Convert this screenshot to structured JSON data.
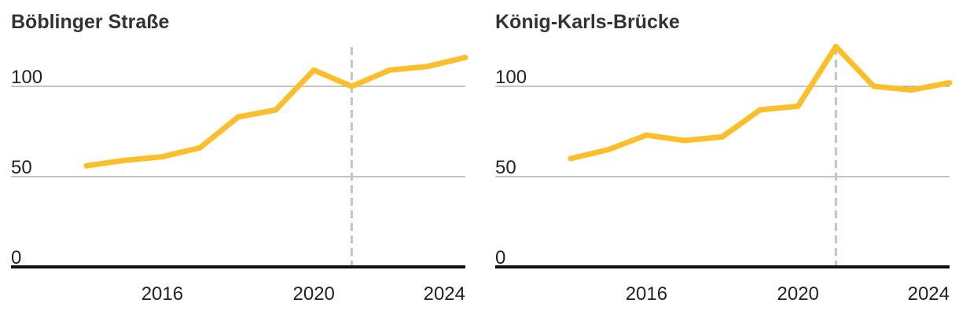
{
  "chart_data": [
    {
      "type": "line",
      "title": "Böblinger Straße",
      "xlabel": "",
      "ylabel": "",
      "ylim": [
        0,
        120
      ],
      "xlim": [
        2013,
        2024.9
      ],
      "y_ticks": [
        0,
        50,
        100
      ],
      "y_tick_labels": [
        "0",
        "50",
        "100"
      ],
      "x_ticks": [
        2016,
        2020,
        2024
      ],
      "x_tick_labels": [
        "2016",
        "2020",
        "2024"
      ],
      "marker_x": 2021,
      "grid": true,
      "series": [
        {
          "x": [
            2014,
            2015,
            2016,
            2017,
            2018,
            2019,
            2020,
            2021,
            2022,
            2023,
            2024
          ],
          "values": [
            56,
            59,
            61,
            66,
            83,
            87,
            109,
            100,
            109,
            111,
            116
          ]
        }
      ]
    },
    {
      "type": "line",
      "title": "König-Karls-Brücke",
      "xlabel": "",
      "ylabel": "",
      "ylim": [
        0,
        120
      ],
      "xlim": [
        2013,
        2024.9
      ],
      "y_ticks": [
        0,
        50,
        100
      ],
      "y_tick_labels": [
        "0",
        "50",
        "100"
      ],
      "x_ticks": [
        2016,
        2020,
        2024
      ],
      "x_tick_labels": [
        "2016",
        "2020",
        "2024"
      ],
      "marker_x": 2021,
      "grid": true,
      "series": [
        {
          "x": [
            2014,
            2015,
            2016,
            2017,
            2018,
            2019,
            2020,
            2021,
            2022,
            2023,
            2024
          ],
          "values": [
            60,
            65,
            73,
            70,
            72,
            87,
            89,
            122,
            100,
            98,
            102
          ]
        }
      ]
    }
  ],
  "colors": {
    "line": "#FBBF2E",
    "grid": "#8a8a8a",
    "baseline": "#111111",
    "marker": "#c2c2c2",
    "title": "#333333",
    "tick_text": "#222222"
  }
}
